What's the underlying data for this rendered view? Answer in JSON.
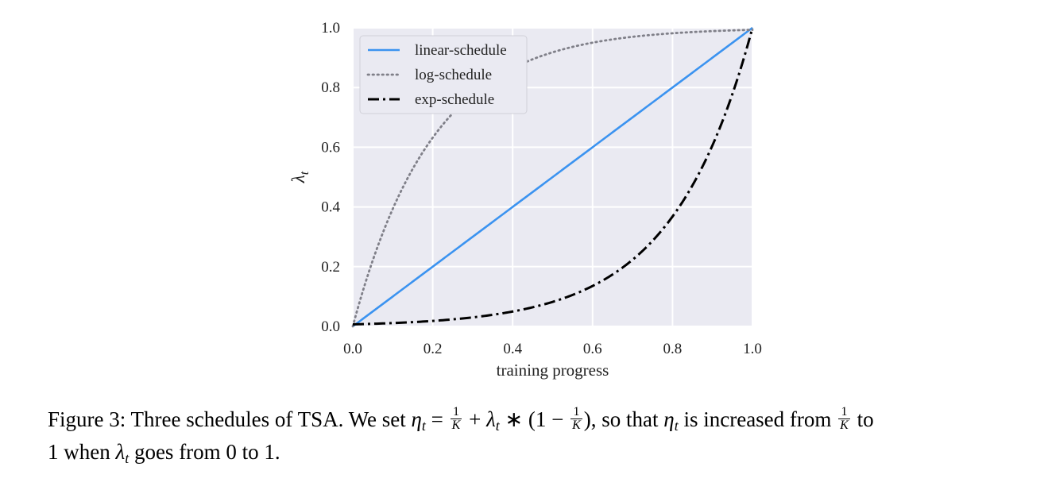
{
  "chart_data": {
    "type": "line",
    "xlabel": "training progress",
    "ylabel": "λ",
    "ylabel_sub": "t",
    "xlim": [
      0.0,
      1.0
    ],
    "ylim": [
      0.0,
      1.0
    ],
    "xticks": [
      "0.0",
      "0.2",
      "0.4",
      "0.6",
      "0.8",
      "1.0"
    ],
    "yticks": [
      "0.0",
      "0.2",
      "0.4",
      "0.6",
      "0.8",
      "1.0"
    ],
    "grid": true,
    "legend_position": "top-left",
    "series": [
      {
        "name": "linear-schedule",
        "style": "solid",
        "color": "#3b93f0",
        "formula": "linear",
        "x": [
          0.0,
          0.2,
          0.4,
          0.6,
          0.8,
          1.0
        ],
        "y": [
          0.0,
          0.2,
          0.4,
          0.6,
          0.8,
          1.0
        ]
      },
      {
        "name": "log-schedule",
        "style": "dotted",
        "color": "#808089",
        "formula": "log",
        "x": [
          0.0,
          0.1,
          0.2,
          0.3,
          0.4,
          0.5,
          0.6,
          0.7,
          0.8,
          0.9,
          1.0
        ],
        "y": [
          0.0,
          0.39,
          0.63,
          0.78,
          0.86,
          0.92,
          0.95,
          0.97,
          0.98,
          0.99,
          1.0
        ]
      },
      {
        "name": "exp-schedule",
        "style": "dashdot",
        "color": "#000000",
        "formula": "exp",
        "x": [
          0.0,
          0.1,
          0.2,
          0.3,
          0.4,
          0.5,
          0.6,
          0.7,
          0.8,
          0.9,
          1.0
        ],
        "y": [
          0.0,
          0.01,
          0.02,
          0.03,
          0.05,
          0.08,
          0.14,
          0.22,
          0.37,
          0.61,
          1.0
        ]
      }
    ]
  },
  "caption": {
    "prefix": "Figure 3: Three schedules of TSA. We set",
    "eta": "η",
    "sub_t": "t",
    "eq": "=",
    "one": "1",
    "K": "K",
    "plus": "+",
    "lambda": "λ",
    "times": "∗ (1 −",
    "close": "),",
    "middle": "so that",
    "increased": "is increased from",
    "to": "to",
    "line2_start": "1 when",
    "line2_end": "goes from 0 to 1."
  }
}
